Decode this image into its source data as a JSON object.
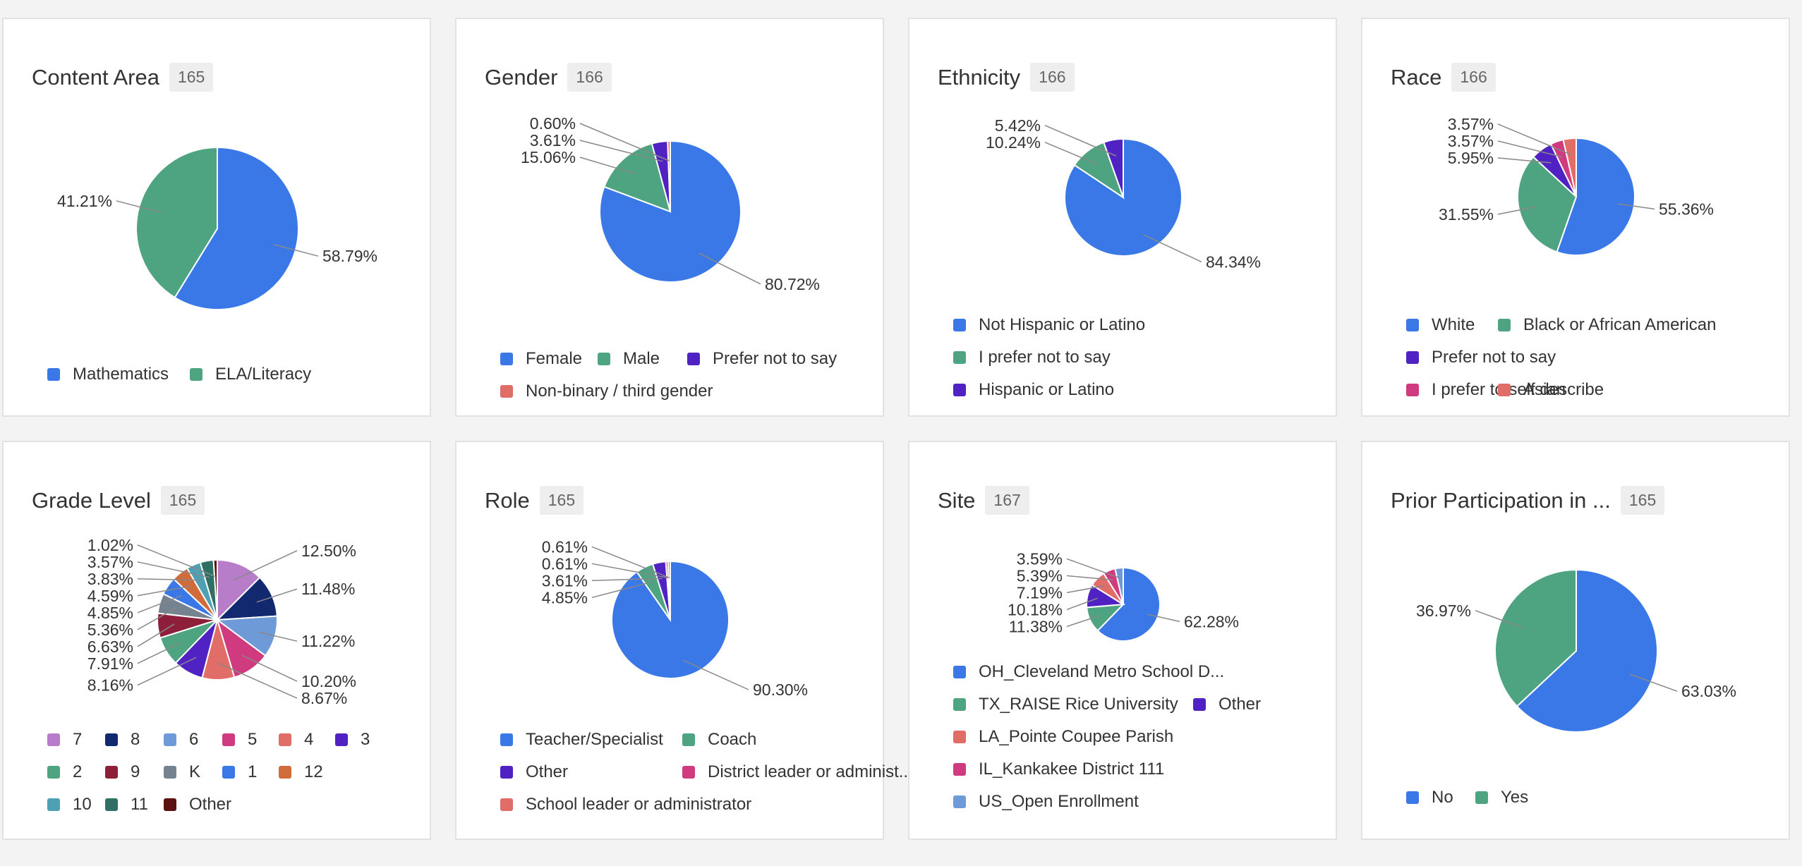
{
  "colors": {
    "blue": "#3b78e7",
    "green": "#4ea480",
    "purple": "#5022c3",
    "pink": "#d03a7e",
    "salmon": "#e06d68",
    "lilac": "#b77dc9",
    "navy": "#12296f",
    "lightblue": "#6f9ad8",
    "maroon": "#8d1f3a",
    "grey": "#75828f",
    "orange": "#d06c3c",
    "teal": "#4ea0b4",
    "darkteal": "#2f6f64",
    "darkred": "#5c1111"
  },
  "cards": [
    {
      "title": "Content Area",
      "count": "165",
      "chart_data": {
        "type": "pie",
        "slices": [
          {
            "label": "Mathematics",
            "value": 58.79,
            "display": "58.79%",
            "color": "blue"
          },
          {
            "label": "ELA/Literacy",
            "value": 41.21,
            "display": "41.21%",
            "color": "green"
          }
        ]
      }
    },
    {
      "title": "Gender",
      "count": "166",
      "chart_data": {
        "type": "pie",
        "slices": [
          {
            "label": "Female",
            "value": 80.72,
            "display": "80.72%",
            "color": "blue"
          },
          {
            "label": "Male",
            "value": 15.06,
            "display": "15.06%",
            "color": "green"
          },
          {
            "label": "Prefer not to say",
            "value": 3.61,
            "display": "3.61%",
            "color": "purple"
          },
          {
            "label": "Non-binary / third gender",
            "value": 0.6,
            "display": "0.60%",
            "color": "salmon"
          }
        ]
      }
    },
    {
      "title": "Ethnicity",
      "count": "166",
      "chart_data": {
        "type": "pie",
        "slices": [
          {
            "label": "Not Hispanic or Latino",
            "value": 84.34,
            "display": "84.34%",
            "color": "blue"
          },
          {
            "label": "I prefer not to say",
            "value": 10.24,
            "display": "10.24%",
            "color": "green"
          },
          {
            "label": "Hispanic or Latino",
            "value": 5.42,
            "display": "5.42%",
            "color": "purple"
          }
        ]
      }
    },
    {
      "title": "Race",
      "count": "166",
      "chart_data": {
        "type": "pie",
        "slices": [
          {
            "label": "White",
            "value": 55.36,
            "display": "55.36%",
            "color": "blue"
          },
          {
            "label": "Black or African American",
            "value": 31.55,
            "display": "31.55%",
            "color": "green"
          },
          {
            "label": "Prefer not to say",
            "value": 5.95,
            "display": "5.95%",
            "color": "purple"
          },
          {
            "label": "I prefer to self describe",
            "value": 3.57,
            "display": "3.57%",
            "color": "pink"
          },
          {
            "label": "Asian",
            "value": 3.57,
            "display": "3.57%",
            "color": "salmon"
          }
        ]
      }
    },
    {
      "title": "Grade Level",
      "count": "165",
      "chart_data": {
        "type": "pie",
        "slices": [
          {
            "label": "7",
            "value": 12.5,
            "display": "12.50%",
            "color": "lilac"
          },
          {
            "label": "8",
            "value": 11.48,
            "display": "11.48%",
            "color": "navy"
          },
          {
            "label": "6",
            "value": 11.22,
            "display": "11.22%",
            "color": "lightblue"
          },
          {
            "label": "5",
            "value": 10.2,
            "display": "10.20%",
            "color": "pink"
          },
          {
            "label": "4",
            "value": 8.67,
            "display": "8.67%",
            "color": "salmon"
          },
          {
            "label": "3",
            "value": 8.16,
            "display": "8.16%",
            "color": "purple"
          },
          {
            "label": "2",
            "value": 7.91,
            "display": "7.91%",
            "color": "green"
          },
          {
            "label": "9",
            "value": 6.63,
            "display": "6.63%",
            "color": "maroon"
          },
          {
            "label": "K",
            "value": 5.36,
            "display": "5.36%",
            "color": "grey"
          },
          {
            "label": "1",
            "value": 4.85,
            "display": "4.85%",
            "color": "blue"
          },
          {
            "label": "12",
            "value": 4.59,
            "display": "4.59%",
            "color": "orange"
          },
          {
            "label": "10",
            "value": 3.83,
            "display": "3.83%",
            "color": "teal"
          },
          {
            "label": "11",
            "value": 3.57,
            "display": "3.57%",
            "color": "darkteal"
          },
          {
            "label": "Other",
            "value": 1.02,
            "display": "1.02%",
            "color": "darkred"
          }
        ]
      }
    },
    {
      "title": "Role",
      "count": "165",
      "chart_data": {
        "type": "pie",
        "slices": [
          {
            "label": "Teacher/Specialist",
            "value": 90.3,
            "display": "90.30%",
            "color": "blue"
          },
          {
            "label": "Coach",
            "value": 4.85,
            "display": "4.85%",
            "color": "green"
          },
          {
            "label": "Other",
            "value": 3.61,
            "display": "3.61%",
            "color": "purple"
          },
          {
            "label": "District leader or administ...",
            "value": 0.61,
            "display": "0.61%",
            "color": "pink"
          },
          {
            "label": "School leader or administrator",
            "value": 0.61,
            "display": "0.61%",
            "color": "salmon"
          }
        ]
      }
    },
    {
      "title": "Site",
      "count": "167",
      "chart_data": {
        "type": "pie",
        "slices": [
          {
            "label": "OH_Cleveland Metro School D...",
            "value": 62.28,
            "display": "62.28%",
            "color": "blue"
          },
          {
            "label": "TX_RAISE Rice University",
            "value": 11.38,
            "display": "11.38%",
            "color": "green"
          },
          {
            "label": "Other",
            "value": 10.18,
            "display": "10.18%",
            "color": "purple"
          },
          {
            "label": "LA_Pointe Coupee Parish",
            "value": 7.19,
            "display": "7.19%",
            "color": "salmon"
          },
          {
            "label": "IL_Kankakee District 111",
            "value": 5.39,
            "display": "5.39%",
            "color": "pink"
          },
          {
            "label": "US_Open Enrollment",
            "value": 3.59,
            "display": "3.59%",
            "color": "lightblue"
          }
        ]
      }
    },
    {
      "title": "Prior Participation in ...",
      "count": "165",
      "chart_data": {
        "type": "pie",
        "slices": [
          {
            "label": "No",
            "value": 63.03,
            "display": "63.03%",
            "color": "blue"
          },
          {
            "label": "Yes",
            "value": 36.97,
            "display": "36.97%",
            "color": "green"
          }
        ]
      }
    }
  ]
}
